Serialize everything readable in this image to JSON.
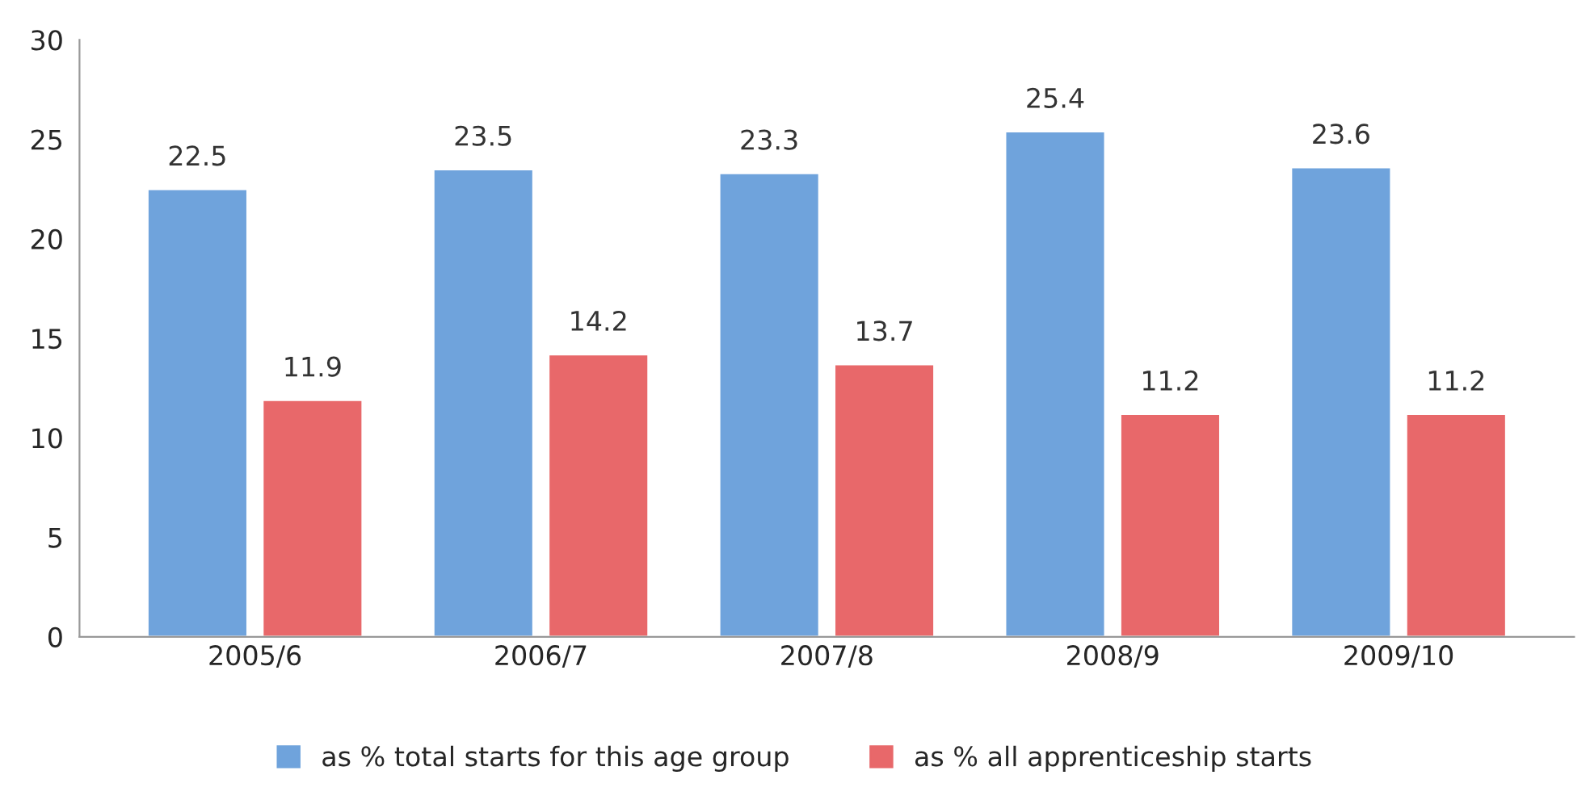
{
  "chart_data": {
    "type": "bar",
    "categories": [
      "2005/6",
      "2006/7",
      "2007/8",
      "2008/9",
      "2009/10"
    ],
    "series": [
      {
        "name": "as % total starts for this age group",
        "color": "#6fa3dc",
        "values": [
          22.5,
          23.5,
          23.3,
          25.4,
          23.6
        ]
      },
      {
        "name": "as % all apprenticeship starts",
        "color": "#e8686a",
        "values": [
          11.9,
          14.2,
          13.7,
          11.2,
          11.2
        ]
      }
    ],
    "ylim": [
      0,
      30
    ],
    "yticks": [
      0,
      5,
      10,
      15,
      20,
      25,
      30
    ],
    "grid": false,
    "legend": "bottom",
    "data_labels": true
  }
}
